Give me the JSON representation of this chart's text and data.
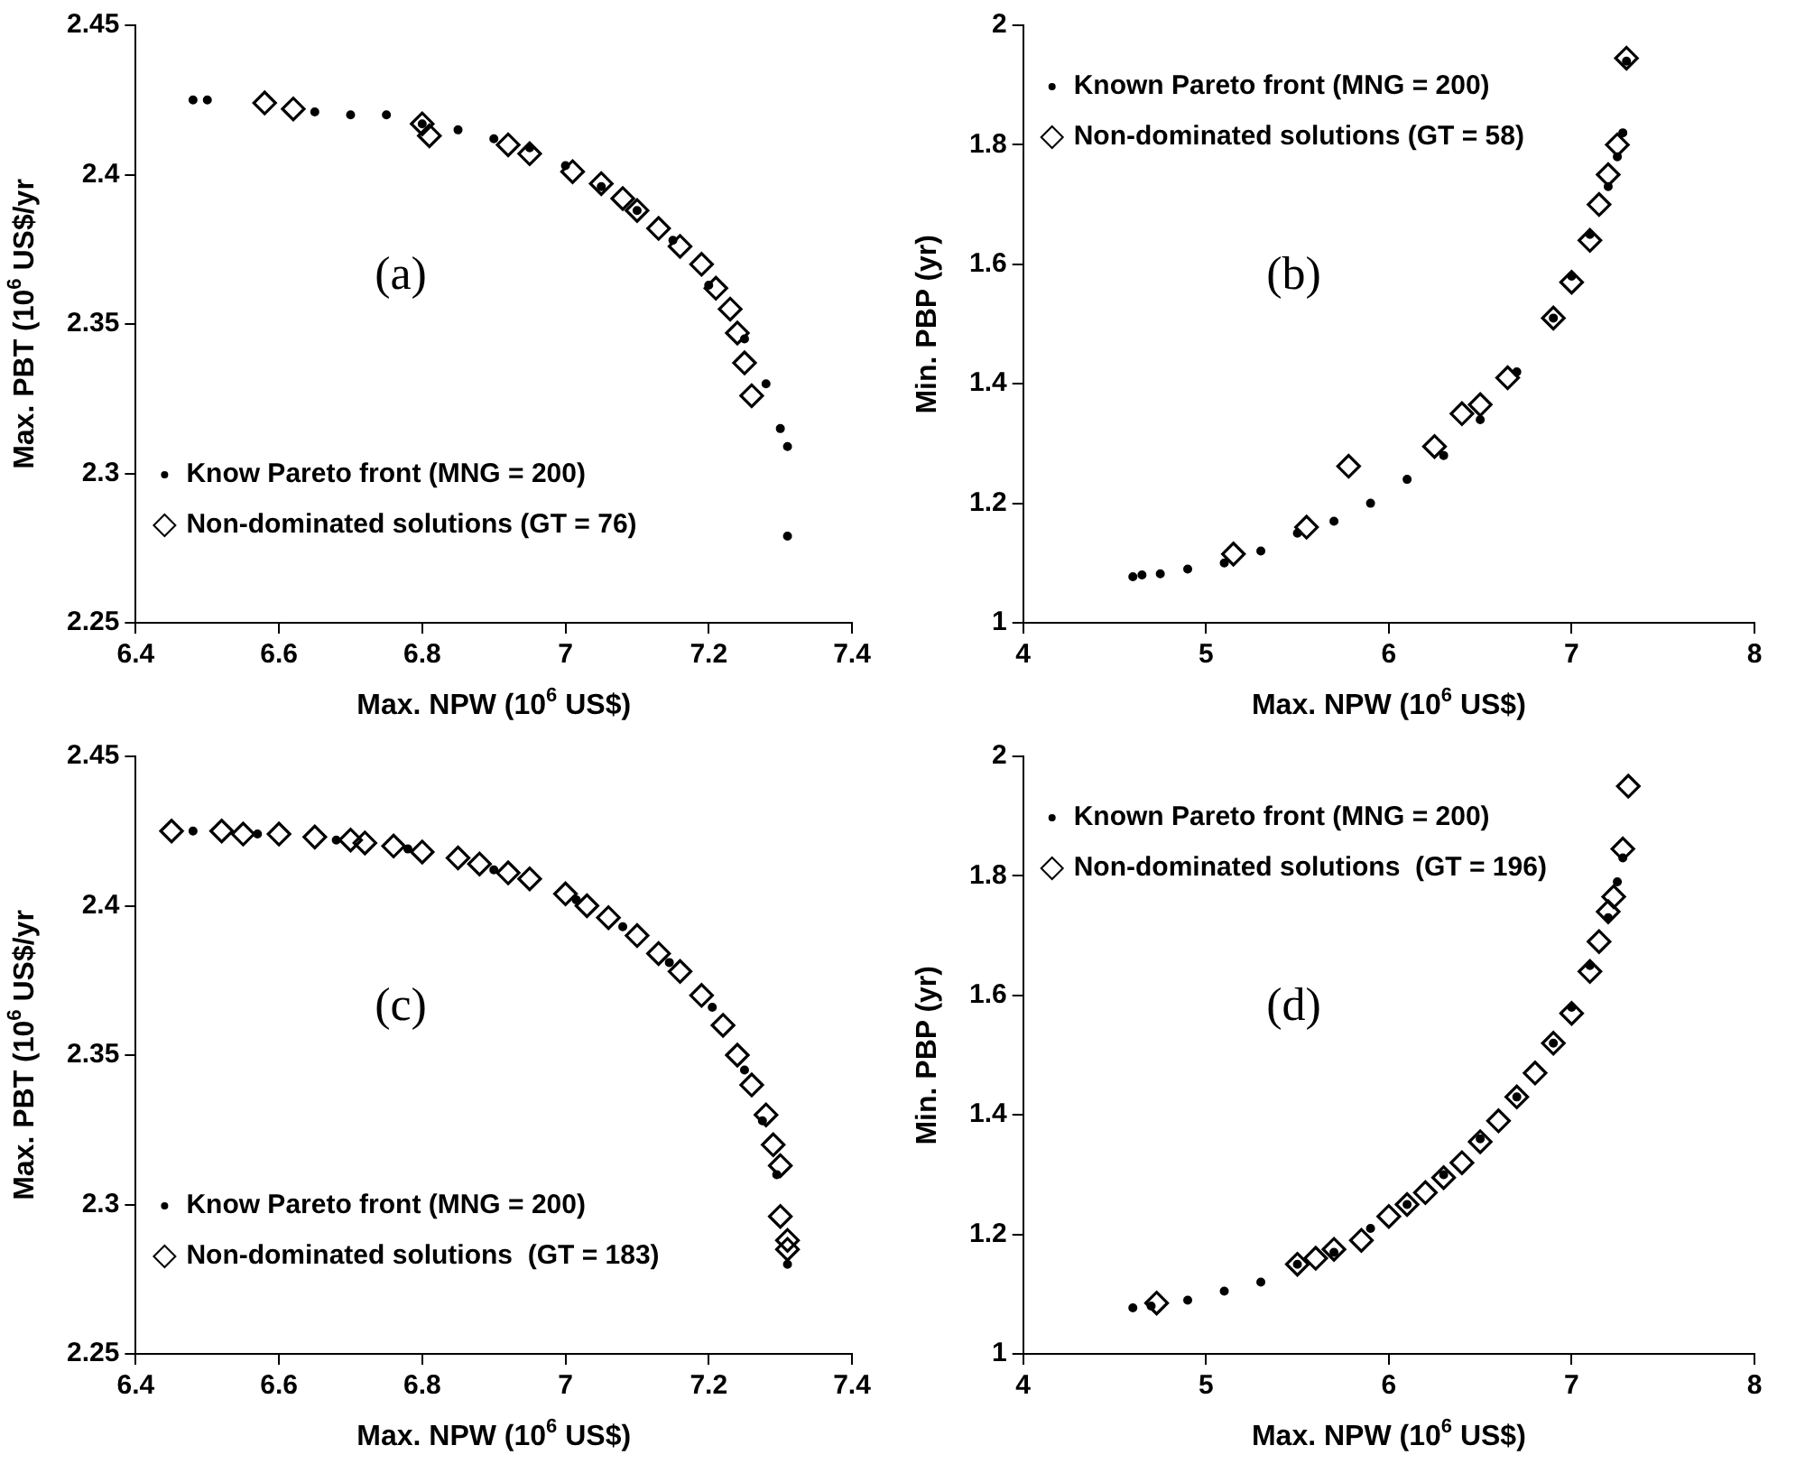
{
  "chart_data": [
    {
      "type": "scatter",
      "xlabel": "Max. NPW (10$^{6}$ US$)",
      "ylabel": "Max. PBT (10$^{6}$ US$/yr",
      "annotations": [
        "(a)"
      ],
      "xlim": [
        6.4,
        7.4
      ],
      "xticks": [
        6.4,
        6.6,
        6.8,
        7,
        7.2,
        7.4
      ],
      "ylim": [
        2.25,
        2.45
      ],
      "yticks": [
        2.25,
        2.3,
        2.35,
        2.4,
        2.45
      ],
      "grid": false,
      "legend": "bottom left",
      "series": [
        {
          "name": "Know Pareto front (MNG = 200)",
          "color": "#000000",
          "marker": "circle",
          "x": [
            6.48,
            6.5,
            6.65,
            6.7,
            6.75,
            6.8,
            6.85,
            6.9,
            6.95,
            7.0,
            7.05,
            7.1,
            7.15,
            7.2,
            7.25,
            7.28,
            7.3,
            7.31,
            7.31
          ],
          "values": [
            2.425,
            2.425,
            2.421,
            2.42,
            2.42,
            2.417,
            2.415,
            2.412,
            2.409,
            2.403,
            2.396,
            2.388,
            2.378,
            2.363,
            2.345,
            2.33,
            2.315,
            2.309,
            2.279
          ]
        },
        {
          "name": "Non-dominated solutions (GT = 76)",
          "color": "#000000",
          "marker": "diamond",
          "x": [
            6.58,
            6.62,
            6.8,
            6.81,
            6.92,
            6.95,
            7.01,
            7.05,
            7.08,
            7.1,
            7.13,
            7.16,
            7.19,
            7.21,
            7.23,
            7.24,
            7.25,
            7.26
          ],
          "values": [
            2.424,
            2.422,
            2.417,
            2.413,
            2.41,
            2.407,
            2.401,
            2.397,
            2.392,
            2.388,
            2.382,
            2.376,
            2.37,
            2.362,
            2.355,
            2.347,
            2.337,
            2.326
          ]
        }
      ]
    },
    {
      "type": "scatter",
      "xlabel": "Max. NPW (10$^{6}$ US$)",
      "ylabel": "Min. PBP (yr)",
      "annotations": [
        "(b)"
      ],
      "xlim": [
        4,
        8
      ],
      "xticks": [
        4,
        5,
        6,
        7,
        8
      ],
      "ylim": [
        1,
        2
      ],
      "yticks": [
        1,
        1.2,
        1.4,
        1.6,
        1.8,
        2
      ],
      "grid": false,
      "legend": "top left",
      "series": [
        {
          "name": "Known Pareto front (MNG = 200)",
          "color": "#000000",
          "marker": "circle",
          "x": [
            4.6,
            4.65,
            4.75,
            4.9,
            5.1,
            5.3,
            5.5,
            5.7,
            5.9,
            6.1,
            6.3,
            6.5,
            6.7,
            6.9,
            7.0,
            7.1,
            7.2,
            7.25,
            7.28,
            7.3
          ],
          "values": [
            1.077,
            1.08,
            1.082,
            1.09,
            1.1,
            1.12,
            1.15,
            1.17,
            1.2,
            1.24,
            1.28,
            1.34,
            1.42,
            1.51,
            1.58,
            1.65,
            1.73,
            1.78,
            1.82,
            1.94
          ]
        },
        {
          "name": "Non-dominated solutions (GT = 58)",
          "color": "#000000",
          "marker": "diamond",
          "x": [
            5.15,
            5.55,
            5.78,
            6.25,
            6.4,
            6.5,
            6.65,
            6.9,
            7.0,
            7.1,
            7.15,
            7.2,
            7.25,
            7.3
          ],
          "values": [
            1.115,
            1.16,
            1.262,
            1.295,
            1.35,
            1.365,
            1.41,
            1.51,
            1.57,
            1.64,
            1.7,
            1.75,
            1.8,
            1.945
          ]
        }
      ]
    },
    {
      "type": "scatter",
      "xlabel": "Max. NPW (10$^{6}$ US$)",
      "ylabel": "Max. PBT (10$^{6}$ US$/yr",
      "annotations": [
        "(c)"
      ],
      "xlim": [
        6.4,
        7.4
      ],
      "xticks": [
        6.4,
        6.6,
        6.8,
        7,
        7.2,
        7.4
      ],
      "ylim": [
        2.25,
        2.45
      ],
      "yticks": [
        2.25,
        2.3,
        2.35,
        2.4,
        2.45
      ],
      "grid": false,
      "legend": "bottom left",
      "series": [
        {
          "name": "Know Pareto front (MNG = 200)",
          "color": "#000000",
          "marker": "circle",
          "x": [
            6.48,
            6.57,
            6.68,
            6.78,
            6.9,
            7.015,
            7.08,
            7.145,
            7.205,
            7.25,
            7.275,
            7.295,
            7.31
          ],
          "values": [
            2.425,
            2.424,
            2.422,
            2.419,
            2.412,
            2.402,
            2.393,
            2.381,
            2.366,
            2.345,
            2.328,
            2.31,
            2.28
          ]
        },
        {
          "name": "Non-dominated solutions  (GT = 183)",
          "color": "#000000",
          "marker": "diamond",
          "x": [
            6.45,
            6.52,
            6.55,
            6.6,
            6.65,
            6.7,
            6.72,
            6.76,
            6.8,
            6.85,
            6.88,
            6.92,
            6.95,
            7.0,
            7.03,
            7.06,
            7.1,
            7.13,
            7.16,
            7.19,
            7.22,
            7.24,
            7.26,
            7.28,
            7.29,
            7.3,
            7.3,
            7.31,
            7.31
          ],
          "values": [
            2.425,
            2.425,
            2.424,
            2.424,
            2.423,
            2.422,
            2.421,
            2.42,
            2.418,
            2.416,
            2.414,
            2.411,
            2.409,
            2.404,
            2.4,
            2.396,
            2.39,
            2.384,
            2.378,
            2.37,
            2.36,
            2.35,
            2.34,
            2.33,
            2.32,
            2.313,
            2.296,
            2.288,
            2.285
          ]
        }
      ]
    },
    {
      "type": "scatter",
      "xlabel": "Max. NPW (10$^{6}$ US$)",
      "ylabel": "Min. PBP (yr)",
      "annotations": [
        "(d)"
      ],
      "xlim": [
        4,
        8
      ],
      "xticks": [
        4,
        5,
        6,
        7,
        8
      ],
      "ylim": [
        1,
        2
      ],
      "yticks": [
        1,
        1.2,
        1.4,
        1.6,
        1.8,
        2
      ],
      "grid": false,
      "legend": "top left",
      "series": [
        {
          "name": "Known Pareto front (MNG = 200)",
          "color": "#000000",
          "marker": "circle",
          "x": [
            4.6,
            4.7,
            4.9,
            5.1,
            5.3,
            5.5,
            5.7,
            5.9,
            6.1,
            6.3,
            6.5,
            6.7,
            6.9,
            7.0,
            7.1,
            7.2,
            7.25,
            7.28
          ],
          "values": [
            1.077,
            1.08,
            1.09,
            1.105,
            1.12,
            1.15,
            1.17,
            1.21,
            1.25,
            1.3,
            1.36,
            1.43,
            1.52,
            1.58,
            1.65,
            1.73,
            1.79,
            1.83
          ]
        },
        {
          "name": "Non-dominated solutions  (GT = 196)",
          "color": "#000000",
          "marker": "diamond",
          "x": [
            4.73,
            5.5,
            5.6,
            5.7,
            5.85,
            6.0,
            6.1,
            6.2,
            6.3,
            6.4,
            6.5,
            6.6,
            6.7,
            6.8,
            6.9,
            7.0,
            7.1,
            7.15,
            7.2,
            7.23,
            7.28,
            7.31
          ],
          "values": [
            1.085,
            1.15,
            1.16,
            1.175,
            1.19,
            1.23,
            1.25,
            1.27,
            1.295,
            1.32,
            1.355,
            1.39,
            1.43,
            1.47,
            1.52,
            1.57,
            1.64,
            1.69,
            1.74,
            1.765,
            1.845,
            1.95
          ]
        }
      ]
    }
  ]
}
